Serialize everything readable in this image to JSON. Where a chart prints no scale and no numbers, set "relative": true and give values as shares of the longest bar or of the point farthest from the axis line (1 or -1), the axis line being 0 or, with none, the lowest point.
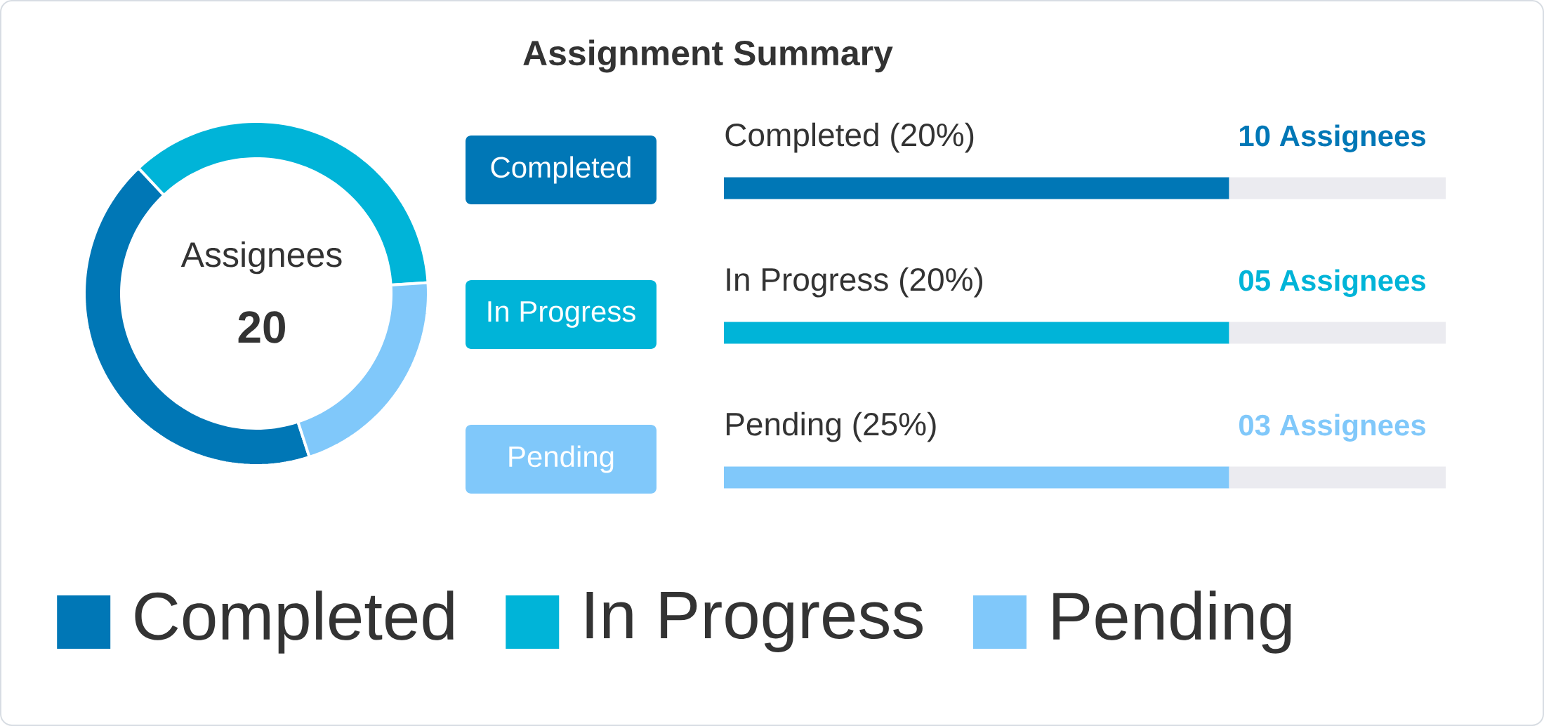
{
  "chart_data": [
    {
      "type": "donut",
      "categories": [
        "Completed",
        "In Progress",
        "Pending"
      ],
      "values": [
        43,
        36,
        21
      ],
      "colors": [
        "#0077b6",
        "#00b4d8",
        "#80c8fa"
      ],
      "legend": "bottom",
      "annotations": [
        "Assignees",
        "20"
      ]
    },
    {
      "type": "bar",
      "title": "Assignment Summary",
      "orientation": "horizontal",
      "stacked": true,
      "relative": true,
      "categories": [
        "Completed (20%)",
        "In Progress (20%)",
        "Pending (25%)"
      ],
      "series": [
        {
          "colors": [
            "#0077b6",
            "#00b4d8",
            "#80c8fa"
          ],
          "values": [
            0.7,
            0.7,
            0.7
          ]
        },
        {
          "color": "#ebebf0",
          "values": [
            0.3,
            0.3,
            0.3
          ]
        }
      ],
      "annotations": [
        "Completed",
        "In Progress",
        "Pending",
        "10 Assignees",
        "05 Assignees",
        "03 Assignees"
      ]
    }
  ]
}
